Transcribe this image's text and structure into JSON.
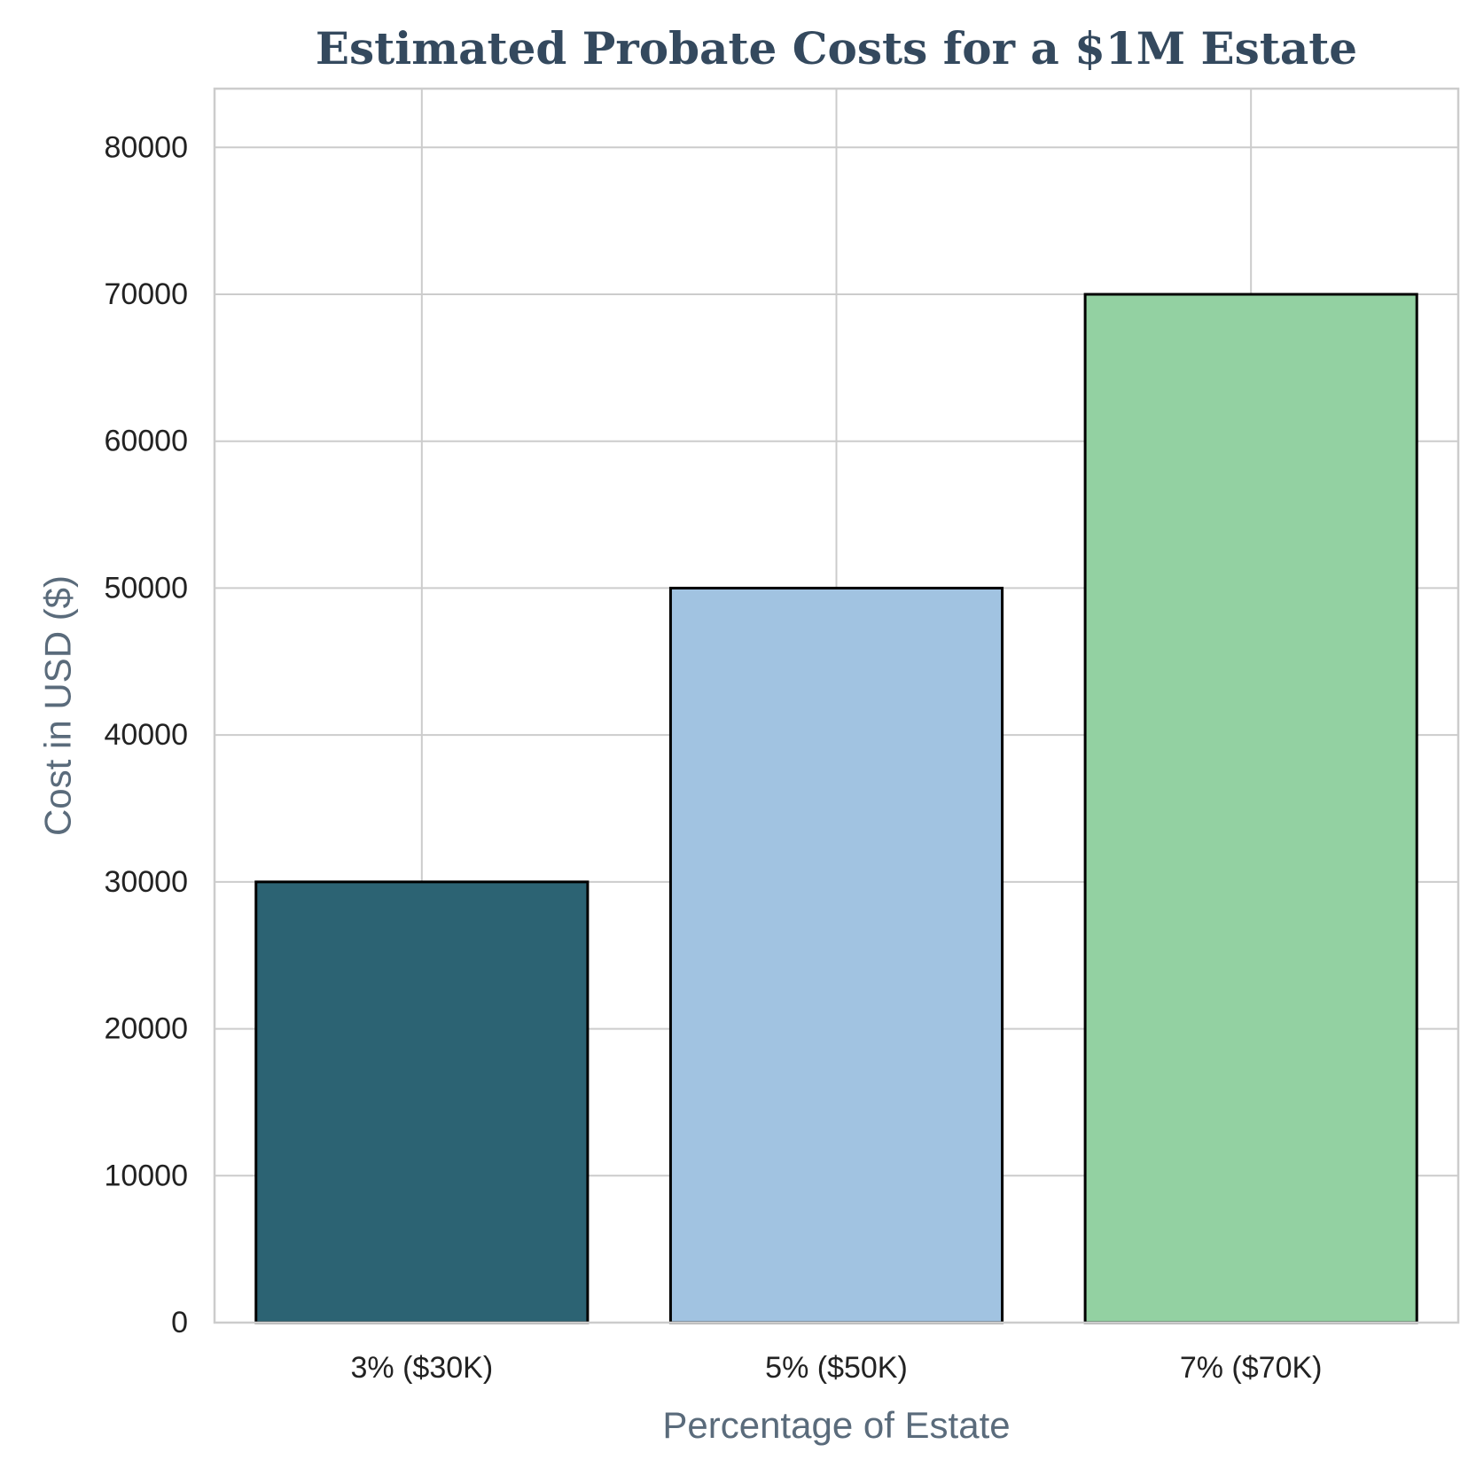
{
  "chart_data": {
    "type": "bar",
    "title": "Estimated Probate Costs for a $1M Estate",
    "xlabel": "Percentage of Estate",
    "ylabel": "Cost in USD ($)",
    "categories": [
      "3% ($30K)",
      "5% ($50K)",
      "7% ($70K)"
    ],
    "values": [
      30000,
      50000,
      70000
    ],
    "colors": [
      "#2c6373",
      "#a1c3e1",
      "#93d1a2"
    ],
    "ylim": [
      0,
      84000
    ],
    "yticks": [
      0,
      10000,
      20000,
      30000,
      40000,
      50000,
      60000,
      70000,
      80000
    ],
    "ytick_labels": [
      "0",
      "10000",
      "20000",
      "30000",
      "40000",
      "50000",
      "60000",
      "70000",
      "80000"
    ],
    "grid": true,
    "legend": "none"
  }
}
